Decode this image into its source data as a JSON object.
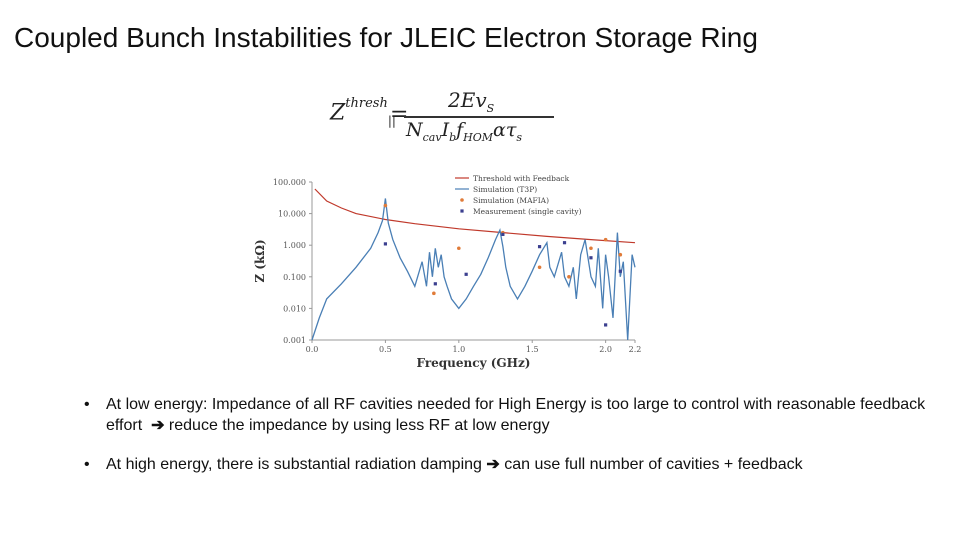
{
  "slide": {
    "title": "Coupled Bunch Instabilities for JLEIC Electron Storage Ring"
  },
  "formula": {
    "lhs": "Z",
    "lhs_sup": "thresh",
    "lhs_sub": "||",
    "equals": "=",
    "numerator": "2Ev",
    "numerator_sub": "S",
    "denominator": "N",
    "den_parts": [
      "cav",
      "I",
      "b",
      "f",
      "HOM",
      "ατ",
      "s"
    ]
  },
  "chart_data": {
    "type": "line",
    "xlabel": "Frequency (GHz)",
    "ylabel": "Z (kΩ)",
    "xlim": [
      0.0,
      2.2
    ],
    "ylim_log": [
      0.001,
      100.0
    ],
    "x_ticks": [
      "0.0",
      "0.5",
      "1.0",
      "1.5",
      "2.0",
      "2.2"
    ],
    "y_ticks": [
      "0.001",
      "0.010",
      "0.100",
      "1.000",
      "10.000",
      "100.000"
    ],
    "legend": {
      "placement": "top-right",
      "entries": [
        "Threshold with Feedback",
        "Simulation (T3P)",
        "Simulation (MAFIA)",
        "Measurement (single cavity)"
      ]
    },
    "colors": {
      "threshold": "#c0392b",
      "simulation_t3p": "#4a7fb5",
      "simulation_mafia": "#e07b39",
      "measurement": "#3b3f8f"
    },
    "series": [
      {
        "name": "Threshold with Feedback",
        "x": [
          0.02,
          0.1,
          0.2,
          0.3,
          0.5,
          0.7,
          1.0,
          1.3,
          1.6,
          1.9,
          2.2
        ],
        "y": [
          60,
          25,
          15,
          10,
          6.5,
          4.8,
          3.3,
          2.5,
          1.9,
          1.5,
          1.2
        ]
      },
      {
        "name": "Simulation (T3P)",
        "x": [
          0.0,
          0.05,
          0.1,
          0.2,
          0.3,
          0.4,
          0.45,
          0.48,
          0.5,
          0.52,
          0.55,
          0.6,
          0.65,
          0.7,
          0.75,
          0.78,
          0.8,
          0.82,
          0.84,
          0.86,
          0.88,
          0.9,
          0.92,
          0.95,
          1.0,
          1.05,
          1.1,
          1.15,
          1.2,
          1.25,
          1.28,
          1.3,
          1.32,
          1.35,
          1.4,
          1.45,
          1.5,
          1.55,
          1.6,
          1.62,
          1.65,
          1.7,
          1.72,
          1.75,
          1.78,
          1.8,
          1.83,
          1.86,
          1.9,
          1.93,
          1.95,
          1.98,
          2.0,
          2.02,
          2.05,
          2.08,
          2.1,
          2.12,
          2.15,
          2.18,
          2.2
        ],
        "y": [
          0.001,
          0.005,
          0.02,
          0.06,
          0.2,
          0.8,
          2.5,
          6,
          30,
          5,
          1.5,
          0.4,
          0.15,
          0.05,
          0.3,
          0.05,
          0.6,
          0.1,
          0.8,
          0.2,
          0.5,
          0.1,
          0.05,
          0.02,
          0.01,
          0.02,
          0.05,
          0.12,
          0.4,
          1.5,
          3,
          0.9,
          0.2,
          0.05,
          0.02,
          0.05,
          0.15,
          0.5,
          1.2,
          0.2,
          0.1,
          0.6,
          0.1,
          0.05,
          0.2,
          0.02,
          0.5,
          1.5,
          0.1,
          0.05,
          0.8,
          0.01,
          0.5,
          0.1,
          0.005,
          2.5,
          0.1,
          0.3,
          0.001,
          0.5,
          0.2
        ]
      },
      {
        "name": "Simulation (MAFIA)",
        "x": [
          0.5,
          0.83,
          1.0,
          1.3,
          1.55,
          1.75,
          1.9,
          2.0,
          2.1
        ],
        "y": [
          18,
          0.03,
          0.8,
          2.5,
          0.2,
          0.1,
          0.8,
          1.5,
          0.5
        ]
      },
      {
        "name": "Measurement (single cavity)",
        "x": [
          0.5,
          0.84,
          1.05,
          1.3,
          1.55,
          1.72,
          1.9,
          2.0,
          2.1
        ],
        "y": [
          1.1,
          0.06,
          0.12,
          2.2,
          0.9,
          1.2,
          0.4,
          0.003,
          0.15
        ]
      }
    ]
  },
  "bullets": [
    {
      "marker": "•",
      "text_before": "At low energy: Impedance of all RF cavities needed for High Energy is too large to control with reasonable feedback effort",
      "arrow": "➔",
      "text_after": "reduce the impedance by using less RF at low energy"
    },
    {
      "marker": "•",
      "text_before": "At high energy, there is substantial radiation damping",
      "arrow": "➔",
      "text_after": "can use full number of cavities + feedback"
    }
  ]
}
